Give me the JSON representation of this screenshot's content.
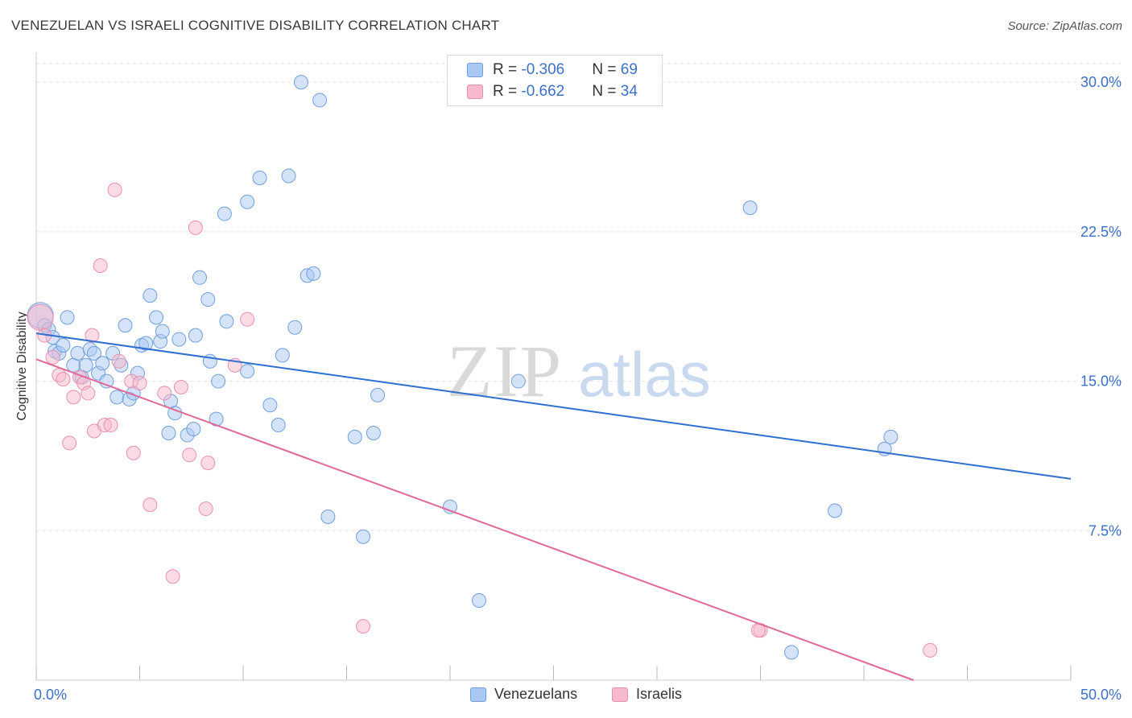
{
  "header": {
    "title": "VENEZUELAN VS ISRAELI COGNITIVE DISABILITY CORRELATION CHART",
    "source": "Source: ZipAtlas.com"
  },
  "watermark": {
    "part1": "ZIP",
    "part2": "atlas"
  },
  "legend": {
    "rows": [
      {
        "r_label": "R = ",
        "r_value": "-0.306",
        "n_label": "N = ",
        "n_value": "69"
      },
      {
        "r_label": "R = ",
        "r_value": "-0.662",
        "n_label": "N = ",
        "n_value": "34"
      }
    ]
  },
  "bottom_legend": {
    "items": [
      "Venezuelans",
      "Israelis"
    ]
  },
  "colors": {
    "venezuelans_fill": "#a9c8f2",
    "venezuelans_stroke": "#6f9fe0",
    "venezuelans_line": "#2f6fcf",
    "israelis_fill": "#f7b9cc",
    "israelis_stroke": "#ea8faf",
    "israelis_line": "#e0699a",
    "tick_label": "#3b6fc9",
    "grid": "#e3e3e3"
  },
  "chart_data": {
    "type": "scatter",
    "title": "VENEZUELAN VS ISRAELI COGNITIVE DISABILITY CORRELATION CHART",
    "xlabel": "",
    "ylabel": "Cognitive Disability",
    "xlim": [
      0,
      50
    ],
    "ylim": [
      0,
      31.5
    ],
    "x_tick_labels": [
      "0.0%",
      "50.0%"
    ],
    "y_ticks": [
      7.5,
      15.0,
      22.5,
      30.0
    ],
    "y_tick_labels": [
      "7.5%",
      "15.0%",
      "22.5%",
      "30.0%"
    ],
    "grid": "horizontal dashed",
    "legend_position": "top-center",
    "series": [
      {
        "name": "Venezuelans",
        "points": [
          [
            0.2,
            18.3
          ],
          [
            0.4,
            17.8
          ],
          [
            0.6,
            17.6
          ],
          [
            0.8,
            17.2
          ],
          [
            0.9,
            16.5
          ],
          [
            1.1,
            16.4
          ],
          [
            1.3,
            16.8
          ],
          [
            1.5,
            18.2
          ],
          [
            1.8,
            15.8
          ],
          [
            2.0,
            16.4
          ],
          [
            2.2,
            15.2
          ],
          [
            2.4,
            15.8
          ],
          [
            2.6,
            16.6
          ],
          [
            2.8,
            16.4
          ],
          [
            3.0,
            15.4
          ],
          [
            3.2,
            15.9
          ],
          [
            3.4,
            15.0
          ],
          [
            3.7,
            16.4
          ],
          [
            3.9,
            14.2
          ],
          [
            4.1,
            15.8
          ],
          [
            4.3,
            17.8
          ],
          [
            4.5,
            14.1
          ],
          [
            4.7,
            14.4
          ],
          [
            4.9,
            15.4
          ],
          [
            5.1,
            16.8
          ],
          [
            5.3,
            16.9
          ],
          [
            5.5,
            19.3
          ],
          [
            5.8,
            18.2
          ],
          [
            6.0,
            17.0
          ],
          [
            6.1,
            17.5
          ],
          [
            6.4,
            12.4
          ],
          [
            6.5,
            14.0
          ],
          [
            6.7,
            13.4
          ],
          [
            6.9,
            17.1
          ],
          [
            7.3,
            12.3
          ],
          [
            7.6,
            12.6
          ],
          [
            7.7,
            17.3
          ],
          [
            7.9,
            20.2
          ],
          [
            8.3,
            19.1
          ],
          [
            8.4,
            16.0
          ],
          [
            8.7,
            13.1
          ],
          [
            8.8,
            15.0
          ],
          [
            9.1,
            23.4
          ],
          [
            9.2,
            18.0
          ],
          [
            10.2,
            24.0
          ],
          [
            10.2,
            15.5
          ],
          [
            10.8,
            25.2
          ],
          [
            11.3,
            13.8
          ],
          [
            11.7,
            12.8
          ],
          [
            11.9,
            16.3
          ],
          [
            12.2,
            25.3
          ],
          [
            12.5,
            17.7
          ],
          [
            12.8,
            30.0
          ],
          [
            13.1,
            20.3
          ],
          [
            13.4,
            20.4
          ],
          [
            13.7,
            29.1
          ],
          [
            14.1,
            8.2
          ],
          [
            15.4,
            12.2
          ],
          [
            15.8,
            7.2
          ],
          [
            16.3,
            12.4
          ],
          [
            16.5,
            14.3
          ],
          [
            20.0,
            8.7
          ],
          [
            21.4,
            4.0
          ],
          [
            23.3,
            15.0
          ],
          [
            34.5,
            23.7
          ],
          [
            36.5,
            1.4
          ],
          [
            38.6,
            8.5
          ],
          [
            41.0,
            11.6
          ],
          [
            41.3,
            12.2
          ]
        ]
      },
      {
        "name": "Israelis",
        "points": [
          [
            0.2,
            18.2
          ],
          [
            0.4,
            17.3
          ],
          [
            0.8,
            16.2
          ],
          [
            1.1,
            15.3
          ],
          [
            1.3,
            15.1
          ],
          [
            1.6,
            11.9
          ],
          [
            1.8,
            14.2
          ],
          [
            2.1,
            15.2
          ],
          [
            2.3,
            14.9
          ],
          [
            2.5,
            14.4
          ],
          [
            2.7,
            17.3
          ],
          [
            2.8,
            12.5
          ],
          [
            3.1,
            20.8
          ],
          [
            3.3,
            12.8
          ],
          [
            3.6,
            12.8
          ],
          [
            3.8,
            24.6
          ],
          [
            4.0,
            16.0
          ],
          [
            4.6,
            15.0
          ],
          [
            4.7,
            11.4
          ],
          [
            5.0,
            14.9
          ],
          [
            5.5,
            8.8
          ],
          [
            6.2,
            14.4
          ],
          [
            6.6,
            5.2
          ],
          [
            7.0,
            14.7
          ],
          [
            7.4,
            11.3
          ],
          [
            7.7,
            22.7
          ],
          [
            8.2,
            8.6
          ],
          [
            8.3,
            10.9
          ],
          [
            9.6,
            15.8
          ],
          [
            10.2,
            18.1
          ],
          [
            15.8,
            2.7
          ],
          [
            35.0,
            2.5
          ],
          [
            43.2,
            1.5
          ],
          [
            34.9,
            2.5
          ]
        ]
      }
    ],
    "trendlines": [
      {
        "series": "Venezuelans",
        "x": [
          0,
          50
        ],
        "y": [
          17.4,
          10.1
        ]
      },
      {
        "series": "Israelis",
        "x": [
          0,
          42.4
        ],
        "y": [
          16.1,
          0.0
        ]
      }
    ]
  }
}
